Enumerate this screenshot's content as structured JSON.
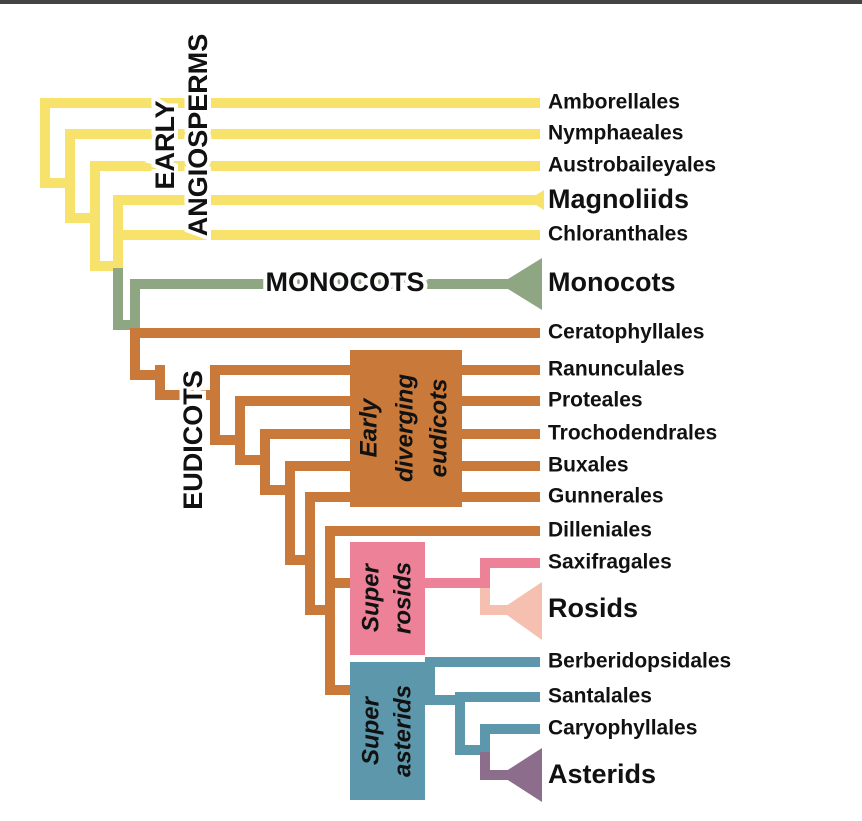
{
  "taxa": [
    "Amborellales",
    "Nymphaeales",
    "Austrobaileyales",
    "Magnoliids",
    "Chloranthales",
    "Monocots",
    "Ceratophyllales",
    "Ranunculales",
    "Proteales",
    "Trochodendrales",
    "Buxales",
    "Gunnerales",
    "Dilleniales",
    "Saxifragales",
    "Rosids",
    "Berberidopsidales",
    "Santalales",
    "Caryophyllales",
    "Asterids"
  ],
  "groups": {
    "early_angiosperms": [
      "EARLY",
      "ANGIOSPERMS"
    ],
    "monocots": "MONOCOTS",
    "eudicots": "EUDICOTS",
    "early_diverging_eudicots": [
      "Early",
      "diverging",
      "eudicots"
    ],
    "super_rosids": [
      "Super",
      "rosids"
    ],
    "super_asterids": [
      "Super",
      "asterids"
    ]
  }
}
